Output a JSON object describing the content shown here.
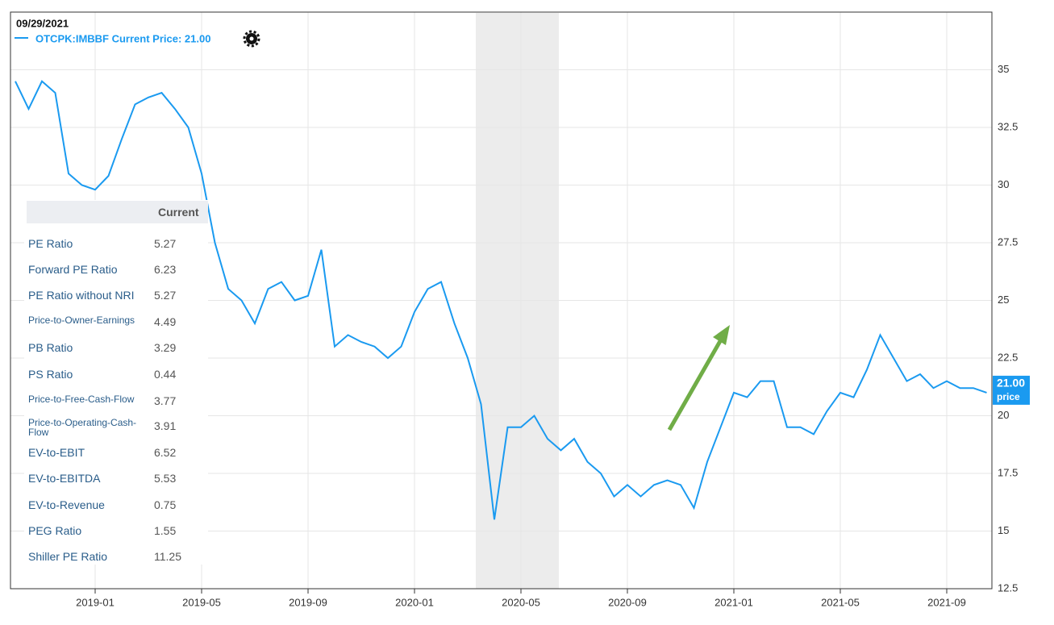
{
  "chart_data": {
    "type": "line",
    "date": "09/29/2021",
    "categories": [
      null,
      null,
      null,
      null,
      null,
      null,
      "2019-01",
      null,
      null,
      null,
      null,
      null,
      null,
      null,
      "2019-05",
      null,
      null,
      null,
      null,
      null,
      null,
      null,
      "2019-09",
      null,
      null,
      null,
      null,
      null,
      null,
      null,
      "2020-01",
      null,
      null,
      null,
      null,
      null,
      null,
      null,
      "2020-05",
      null,
      null,
      null,
      null,
      null,
      null,
      null,
      "2020-09",
      null,
      null,
      null,
      null,
      null,
      null,
      null,
      "2021-01",
      null,
      null,
      null,
      null,
      null,
      null,
      null,
      "2021-05",
      null,
      null,
      null,
      null,
      null,
      null,
      null,
      "2021-09",
      null,
      null,
      null
    ],
    "series": [
      {
        "name": "OTCPK:IMBBF Current Price: 21.00",
        "color": "#1a9af0",
        "values": [
          34.5,
          33.3,
          34.5,
          34,
          30.5,
          30,
          29.8,
          30.4,
          32,
          33.5,
          33.8,
          34,
          33.3,
          32.5,
          30.5,
          27.5,
          25.5,
          25,
          24,
          25.5,
          25.8,
          25,
          25.2,
          27.2,
          23,
          23.5,
          23.2,
          23,
          22.5,
          23,
          24.5,
          25.5,
          25.8,
          24,
          22.5,
          20.5,
          15.5,
          19.5,
          19.5,
          20,
          19,
          18.5,
          19,
          18,
          17.5,
          16.5,
          17,
          16.5,
          17,
          17.2,
          17,
          16,
          18,
          19.5,
          21,
          20.8,
          21.5,
          21.5,
          19.5,
          19.5,
          19.2,
          20.2,
          21,
          20.8,
          22,
          23.5,
          22.5,
          21.5,
          21.8,
          21.2,
          21.5,
          21.2,
          21.2,
          21
        ]
      }
    ],
    "current": {
      "value": 21,
      "label": "21.00",
      "unit": "price"
    },
    "ylim": [
      12.5,
      37.5
    ],
    "yticks": [
      12.5,
      15,
      17.5,
      20,
      22.5,
      25,
      27.5,
      30,
      32.5,
      35
    ],
    "grid": true
  },
  "table": {
    "column": "Current",
    "rows": [
      [
        "PE Ratio",
        "5.27"
      ],
      [
        "Forward PE Ratio",
        "6.23"
      ],
      [
        "PE Ratio without NRI",
        "5.27"
      ],
      [
        "Price-to-Owner-Earnings",
        "4.49"
      ],
      [
        "PB Ratio",
        "3.29"
      ],
      [
        "PS Ratio",
        "0.44"
      ],
      [
        "Price-to-Free-Cash-Flow",
        "3.77"
      ],
      [
        "Price-to-Operating-Cash-Flow",
        "3.91"
      ],
      [
        "EV-to-EBIT",
        "6.52"
      ],
      [
        "EV-to-EBITDA",
        "5.53"
      ],
      [
        "EV-to-Revenue",
        "0.75"
      ],
      [
        "PEG Ratio",
        "1.55"
      ],
      [
        "Shiller PE Ratio",
        "11.25"
      ]
    ]
  }
}
